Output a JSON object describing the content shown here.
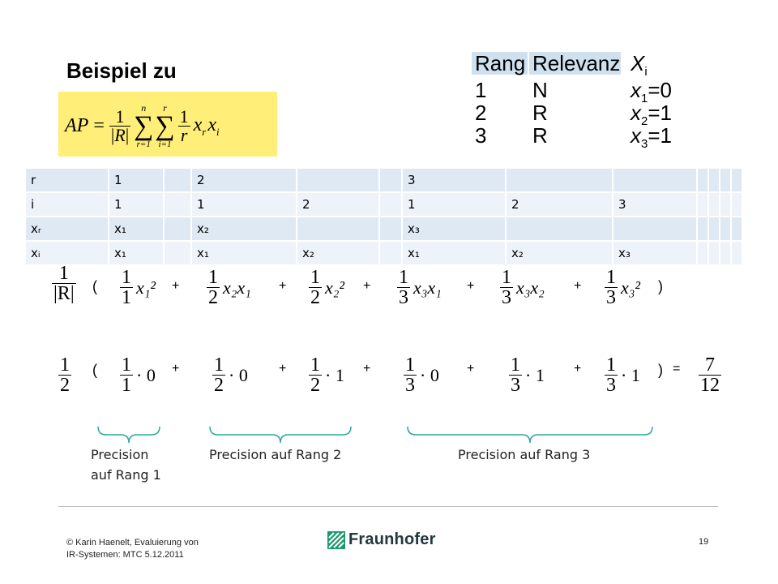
{
  "slide": {
    "title": "Beispiel zu"
  },
  "formula": {
    "lhs": "AP",
    "equals": "=",
    "one": "1",
    "R": "R",
    "sum_n": "n",
    "sum_r": "r",
    "r_eq_1": "r=1",
    "i_eq_1": "i=1",
    "x_r": "x",
    "x_i": "x",
    "sub_r": "r",
    "sub_i": "i"
  },
  "relevance_table": {
    "headers": [
      "Rang",
      "Relevanz",
      "X"
    ],
    "header_sub": "i",
    "rows": [
      {
        "rang": "1",
        "rel": "N",
        "x": "x",
        "sub": "1",
        "val": "=0"
      },
      {
        "rang": "2",
        "rel": "R",
        "x": "x",
        "sub": "2",
        "val": "=1"
      },
      {
        "rang": "3",
        "rel": "R",
        "x": "x",
        "sub": "3",
        "val": "=1"
      }
    ]
  },
  "main_table": {
    "rows": [
      [
        "r",
        "1",
        "",
        "2",
        "",
        "",
        "3",
        "",
        "",
        "",
        "",
        "",
        ""
      ],
      [
        "i",
        "1",
        "",
        "1",
        "2",
        "",
        "1",
        "2",
        "3",
        "",
        "",
        "",
        ""
      ],
      [
        "xᵣ",
        "x₁",
        "",
        "x₂",
        "",
        "",
        "x₃",
        "",
        "",
        "",
        "",
        "",
        ""
      ],
      [
        "xᵢ",
        "x₁",
        "",
        "x₁",
        "x₂",
        "",
        "x₁",
        "x₂",
        "x₃",
        "",
        "",
        "",
        ""
      ]
    ]
  },
  "row1": {
    "prefix_num": "1",
    "prefix_den": "|R|",
    "open": "(",
    "close": ")",
    "plus": "+",
    "terms": [
      {
        "num": "1",
        "den": "1",
        "expr": "x₁²"
      },
      {
        "num": "1",
        "den": "2",
        "expr": "x₂x₁"
      },
      {
        "num": "1",
        "den": "2",
        "expr": "x₂²"
      },
      {
        "num": "1",
        "den": "3",
        "expr": "x₃x₁"
      },
      {
        "num": "1",
        "den": "3",
        "expr": "x₃x₂"
      },
      {
        "num": "1",
        "den": "3",
        "expr": "x₃²"
      }
    ]
  },
  "row2": {
    "prefix_num": "1",
    "prefix_den": "2",
    "open": "(",
    "close": ")",
    "equals": "=",
    "plus": "+",
    "terms": [
      {
        "num": "1",
        "den": "1",
        "expr": "· 0"
      },
      {
        "num": "1",
        "den": "2",
        "expr": "· 0"
      },
      {
        "num": "1",
        "den": "2",
        "expr": "· 1"
      },
      {
        "num": "1",
        "den": "3",
        "expr": "· 0"
      },
      {
        "num": "1",
        "den": "3",
        "expr": "· 1"
      },
      {
        "num": "1",
        "den": "3",
        "expr": "· 1"
      }
    ],
    "result_num": "7",
    "result_den": "12"
  },
  "labels": {
    "rank1_line1": "Precision",
    "rank1_line2": "auf Rang 1",
    "rank2": "Precision auf Rang 2",
    "rank3": "Precision auf Rang 3"
  },
  "colors": {
    "formula_bg": "#ffee77",
    "header_bg": "#cfe0ef",
    "brace": "#2aa7a0"
  },
  "footer": {
    "line1": "© Karin  Haenelt, Evaluierung von",
    "line2": "IR-Systemen: MTC  5.12.2011",
    "page": "19",
    "logo_text": "Fraunhofer"
  }
}
